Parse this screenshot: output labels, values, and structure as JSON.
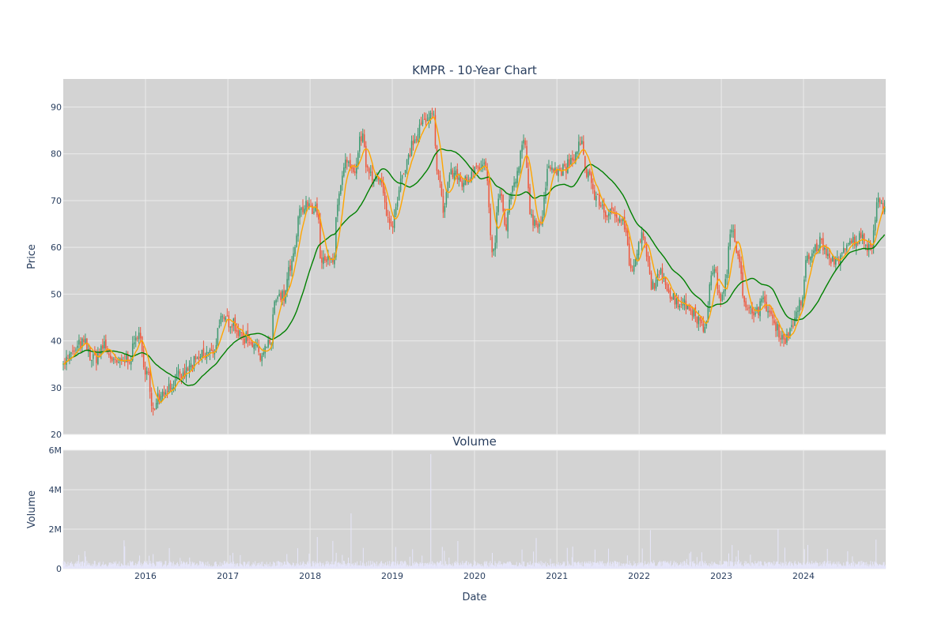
{
  "colors": {
    "plot_bg": "#d3d3d3",
    "grid": "#ebebeb",
    "text": "#2a3f5f",
    "candle_up": "#3d9970",
    "candle_down": "#ef553b",
    "ma_short": "#ffa500",
    "ma_long": "#008000",
    "volume": "#e6e6fa"
  },
  "chart_data": [
    {
      "id": "price",
      "type": "candlestick",
      "title": "KMPR - 10-Year Chart",
      "xlabel": "",
      "ylabel": "Price",
      "ylim": [
        20,
        96
      ],
      "yticks": [
        20,
        30,
        40,
        50,
        60,
        70,
        80,
        90
      ],
      "xlim": [
        "2015-01-01",
        "2024-12-31"
      ],
      "grid": true,
      "close_keypoints": [
        [
          "2015-01-01",
          35.8
        ],
        [
          "2015-04-01",
          39.3
        ],
        [
          "2015-05-15",
          36.0
        ],
        [
          "2015-07-01",
          39.0
        ],
        [
          "2015-08-20",
          35.0
        ],
        [
          "2015-10-15",
          36.0
        ],
        [
          "2015-11-25",
          41.0
        ],
        [
          "2016-01-10",
          33.5
        ],
        [
          "2016-01-31",
          25.0
        ],
        [
          "2016-02-25",
          28.0
        ],
        [
          "2016-04-15",
          30.0
        ],
        [
          "2016-06-01",
          32.0
        ],
        [
          "2016-08-01",
          35.0
        ],
        [
          "2016-09-15",
          37.0
        ],
        [
          "2016-11-01",
          38.0
        ],
        [
          "2016-11-25",
          44.0
        ],
        [
          "2017-01-15",
          44.5
        ],
        [
          "2017-03-01",
          41.0
        ],
        [
          "2017-04-15",
          40.0
        ],
        [
          "2017-06-01",
          37.5
        ],
        [
          "2017-07-10",
          39.0
        ],
        [
          "2017-07-25",
          48.0
        ],
        [
          "2017-09-01",
          49.0
        ],
        [
          "2017-10-15",
          57.0
        ],
        [
          "2017-11-20",
          68.0
        ],
        [
          "2018-01-01",
          69.0
        ],
        [
          "2018-02-01",
          68.0
        ],
        [
          "2018-02-20",
          57.0
        ],
        [
          "2018-04-15",
          57.0
        ],
        [
          "2018-05-01",
          70.0
        ],
        [
          "2018-06-10",
          78.0
        ],
        [
          "2018-07-15",
          75.0
        ],
        [
          "2018-08-15",
          84.0
        ],
        [
          "2018-09-15",
          77.0
        ],
        [
          "2018-11-01",
          74.0
        ],
        [
          "2018-12-25",
          65.0
        ],
        [
          "2019-02-15",
          75.0
        ],
        [
          "2019-04-01",
          82.0
        ],
        [
          "2019-05-15",
          86.0
        ],
        [
          "2019-07-01",
          88.0
        ],
        [
          "2019-07-25",
          75.0
        ],
        [
          "2019-08-15",
          68.0
        ],
        [
          "2019-09-15",
          76.0
        ],
        [
          "2019-11-15",
          74.0
        ],
        [
          "2020-01-15",
          78.0
        ],
        [
          "2020-02-20",
          77.0
        ],
        [
          "2020-03-20",
          58.0
        ],
        [
          "2020-04-25",
          72.0
        ],
        [
          "2020-05-15",
          64.0
        ],
        [
          "2020-06-15",
          72.0
        ],
        [
          "2020-08-10",
          82.0
        ],
        [
          "2020-09-10",
          66.0
        ],
        [
          "2020-10-20",
          65.0
        ],
        [
          "2020-12-01",
          78.0
        ],
        [
          "2021-01-15",
          76.0
        ],
        [
          "2021-03-01",
          78.0
        ],
        [
          "2021-04-15",
          82.0
        ],
        [
          "2021-05-15",
          76.0
        ],
        [
          "2021-07-01",
          70.0
        ],
        [
          "2021-08-15",
          67.0
        ],
        [
          "2021-10-15",
          67.0
        ],
        [
          "2021-12-01",
          55.0
        ],
        [
          "2022-01-15",
          62.0
        ],
        [
          "2022-03-01",
          52.0
        ],
        [
          "2022-04-15",
          54.0
        ],
        [
          "2022-06-01",
          49.0
        ],
        [
          "2022-07-15",
          48.0
        ],
        [
          "2022-08-20",
          47.0
        ],
        [
          "2022-10-15",
          43.0
        ],
        [
          "2022-11-25",
          55.0
        ],
        [
          "2023-01-05",
          49.0
        ],
        [
          "2023-02-20",
          64.0
        ],
        [
          "2023-03-20",
          58.0
        ],
        [
          "2023-04-20",
          46.0
        ],
        [
          "2023-06-01",
          47.0
        ],
        [
          "2023-07-15",
          48.0
        ],
        [
          "2023-08-01",
          46.0
        ],
        [
          "2023-09-01",
          43.0
        ],
        [
          "2023-10-10",
          40.0
        ],
        [
          "2023-11-15",
          44.0
        ],
        [
          "2023-12-20",
          48.0
        ],
        [
          "2024-01-20",
          58.0
        ],
        [
          "2024-03-15",
          61.0
        ],
        [
          "2024-05-01",
          57.0
        ],
        [
          "2024-06-15",
          58.0
        ],
        [
          "2024-08-01",
          61.0
        ],
        [
          "2024-09-15",
          62.0
        ],
        [
          "2024-10-25",
          60.0
        ],
        [
          "2024-11-25",
          70.0
        ],
        [
          "2024-12-31",
          68.0
        ]
      ],
      "series": [
        {
          "role": "candles"
        },
        {
          "role": "ma_short",
          "window_days": 50
        },
        {
          "role": "ma_long",
          "window_days": 200
        }
      ]
    },
    {
      "id": "volume",
      "type": "bar",
      "title": "Volume",
      "xlabel": "Date",
      "ylabel": "Volume",
      "ylim": [
        0,
        6000000
      ],
      "yticks": [
        0,
        2000000,
        4000000,
        6000000
      ],
      "ytick_labels": [
        "0",
        "2M",
        "4M",
        "6M"
      ],
      "xticks": [
        "2016-01-01",
        "2017-01-01",
        "2018-01-01",
        "2019-01-01",
        "2020-01-01",
        "2021-01-01",
        "2022-01-01",
        "2023-01-01",
        "2024-01-01"
      ],
      "xtick_labels": [
        "2016",
        "2017",
        "2018",
        "2019",
        "2020",
        "2021",
        "2022",
        "2023",
        "2024"
      ],
      "typical_volume": 250000,
      "spikes": [
        [
          "2018-02-01",
          1600000
        ],
        [
          "2018-07-01",
          2800000
        ],
        [
          "2019-01-15",
          1100000
        ],
        [
          "2019-06-20",
          5800000
        ],
        [
          "2019-08-10",
          1100000
        ],
        [
          "2020-03-20",
          800000
        ],
        [
          "2021-02-15",
          1050000
        ],
        [
          "2022-02-20",
          1950000
        ],
        [
          "2023-09-10",
          2000000
        ],
        [
          "2024-01-20",
          1200000
        ],
        [
          "2024-04-15",
          1000000
        ]
      ],
      "grid": true
    }
  ]
}
